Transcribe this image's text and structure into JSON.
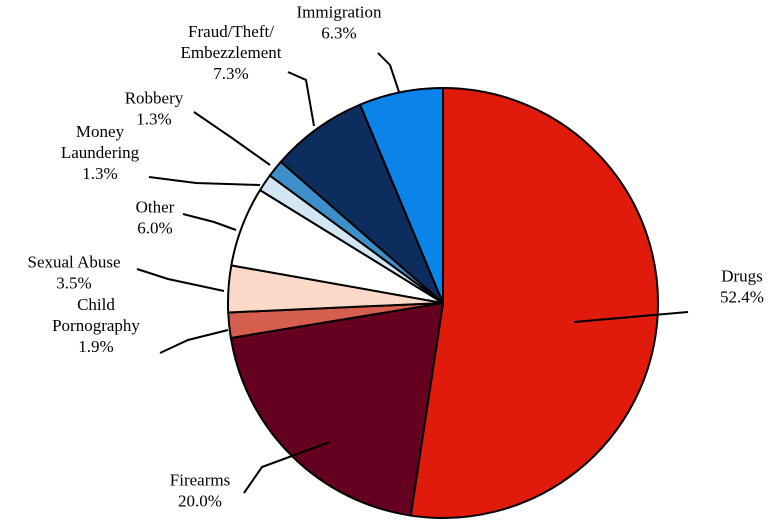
{
  "chart_data": {
    "type": "pie",
    "title": "",
    "slices": [
      {
        "label_lines": [
          "Drugs"
        ],
        "value_text": "52.4%",
        "value": 52.4,
        "color": "#e01b0c"
      },
      {
        "label_lines": [
          "Firearms"
        ],
        "value_text": "20.0%",
        "value": 20.0,
        "color": "#650020"
      },
      {
        "label_lines": [
          "Child",
          "Pornography"
        ],
        "value_text": "1.9%",
        "value": 1.9,
        "color": "#d55e4e"
      },
      {
        "label_lines": [
          "Sexual Abuse"
        ],
        "value_text": "3.5%",
        "value": 3.5,
        "color": "#fcd9c8"
      },
      {
        "label_lines": [
          "Other"
        ],
        "value_text": "6.0%",
        "value": 6.0,
        "color": "#ffffff"
      },
      {
        "label_lines": [
          "Money",
          "Laundering"
        ],
        "value_text": "1.3%",
        "value": 1.3,
        "color": "#d3e6f4"
      },
      {
        "label_lines": [
          "Robbery"
        ],
        "value_text": "1.3%",
        "value": 1.3,
        "color": "#3d8ec9"
      },
      {
        "label_lines": [
          "Fraud/Theft/",
          "Embezzlement"
        ],
        "value_text": "7.3%",
        "value": 7.3,
        "color": "#0c2d5e"
      },
      {
        "label_lines": [
          "Immigration"
        ],
        "value_text": "6.3%",
        "value": 6.3,
        "color": "#0a84e8"
      }
    ]
  }
}
